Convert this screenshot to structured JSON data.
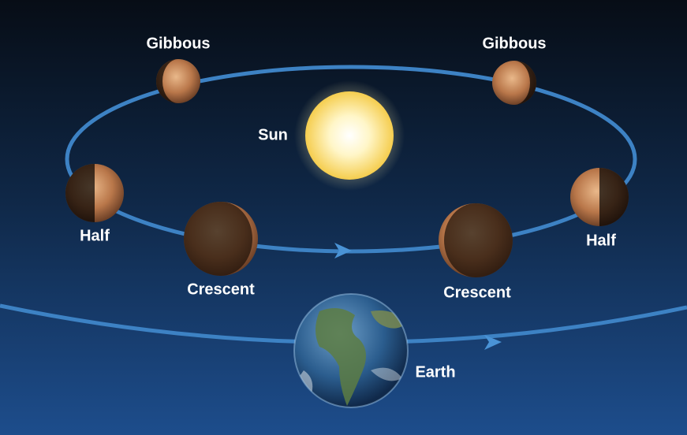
{
  "sun": {
    "label": "Sun"
  },
  "earth": {
    "label": "Earth"
  },
  "phases": [
    {
      "label": "Gibbous"
    },
    {
      "label": "Gibbous"
    },
    {
      "label": "Half"
    },
    {
      "label": "Half"
    },
    {
      "label": "Crescent"
    },
    {
      "label": "Crescent"
    }
  ]
}
